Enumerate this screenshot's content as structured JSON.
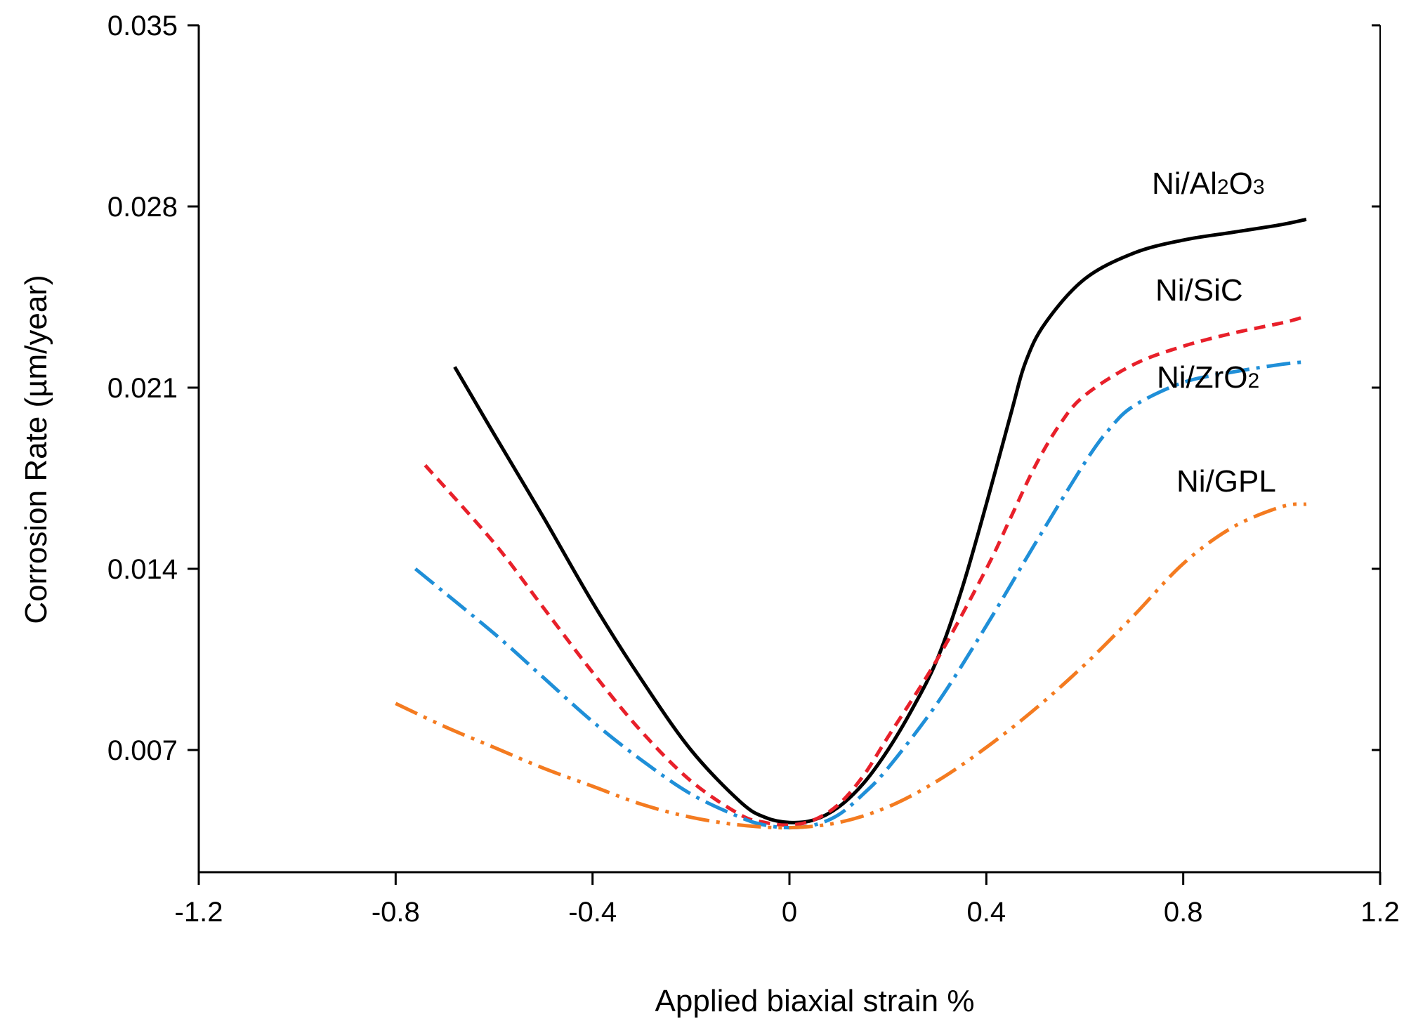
{
  "chart_data": {
    "type": "line",
    "title": "",
    "xlabel": "Applied biaxial strain %",
    "ylabel": "Corrosion Rate (µm/year)",
    "xlim": [
      -1.2,
      1.2
    ],
    "ylim": [
      0.0018,
      0.035
    ],
    "xticks": [
      -1.2,
      -0.8,
      -0.4,
      0,
      0.4,
      0.8,
      1.2
    ],
    "xtick_labels": [
      "-1.2",
      "-0.8",
      "-0.4",
      "0",
      "0.4",
      "0.8",
      "1.2"
    ],
    "yticks": [
      0.007,
      0.014,
      0.021,
      0.028,
      0.035
    ],
    "ytick_labels": [
      "0.007",
      "0.014",
      "0.021",
      "0.028",
      "0.035"
    ],
    "grid": false,
    "legend": "inline labels at right end of each curve",
    "series": [
      {
        "name": "Ni/Al2O3",
        "label_main": "Ni/Al",
        "label_sub1": "2",
        "label_mid": "O",
        "label_sub2": "3",
        "color": "#000000",
        "style": "solid",
        "x": [
          -0.68,
          -0.6,
          -0.5,
          -0.4,
          -0.3,
          -0.2,
          -0.1,
          -0.05,
          0,
          0.05,
          0.1,
          0.15,
          0.2,
          0.25,
          0.3,
          0.35,
          0.4,
          0.45,
          0.48,
          0.52,
          0.6,
          0.7,
          0.8,
          0.9,
          1.0,
          1.05
        ],
        "y": [
          0.0218,
          0.0192,
          0.016,
          0.0127,
          0.0097,
          0.007,
          0.005,
          0.0044,
          0.0042,
          0.0043,
          0.0048,
          0.0057,
          0.007,
          0.0086,
          0.0105,
          0.0132,
          0.0165,
          0.02,
          0.022,
          0.0235,
          0.0252,
          0.0262,
          0.0267,
          0.027,
          0.0273,
          0.0275
        ]
      },
      {
        "name": "Ni/SiC",
        "label_main": "Ni/SiC",
        "color": "#e8202a",
        "style": "dashed",
        "x": [
          -0.74,
          -0.6,
          -0.5,
          -0.4,
          -0.3,
          -0.2,
          -0.1,
          -0.05,
          0,
          0.05,
          0.1,
          0.15,
          0.2,
          0.3,
          0.4,
          0.45,
          0.5,
          0.55,
          0.6,
          0.7,
          0.8,
          0.9,
          1.0,
          1.04
        ],
        "y": [
          0.018,
          0.015,
          0.0125,
          0.01,
          0.0077,
          0.0058,
          0.0045,
          0.0042,
          0.0041,
          0.0043,
          0.0049,
          0.006,
          0.0075,
          0.0105,
          0.014,
          0.016,
          0.018,
          0.0196,
          0.0207,
          0.0219,
          0.0226,
          0.0231,
          0.0235,
          0.0237
        ]
      },
      {
        "name": "Ni/ZrO2",
        "label_main": "Ni/ZrO",
        "label_sub1": "2",
        "color": "#1f8fd8",
        "style": "dashdot",
        "x": [
          -0.76,
          -0.6,
          -0.5,
          -0.4,
          -0.3,
          -0.2,
          -0.1,
          -0.05,
          0,
          0.05,
          0.1,
          0.15,
          0.2,
          0.3,
          0.4,
          0.5,
          0.6,
          0.65,
          0.7,
          0.8,
          0.9,
          1.0,
          1.05
        ],
        "y": [
          0.014,
          0.0115,
          0.0098,
          0.0081,
          0.0066,
          0.0053,
          0.0044,
          0.0041,
          0.004,
          0.0041,
          0.0045,
          0.0053,
          0.0063,
          0.0088,
          0.0118,
          0.015,
          0.0181,
          0.0194,
          0.0203,
          0.0212,
          0.0216,
          0.0219,
          0.022
        ]
      },
      {
        "name": "Ni/GPL",
        "label_main": "Ni/GPL",
        "color": "#f47b20",
        "style": "dashdotdot",
        "x": [
          -0.8,
          -0.7,
          -0.6,
          -0.5,
          -0.4,
          -0.3,
          -0.2,
          -0.1,
          0,
          0.1,
          0.2,
          0.3,
          0.4,
          0.5,
          0.6,
          0.7,
          0.8,
          0.9,
          1.0,
          1.05
        ],
        "y": [
          0.0088,
          0.0079,
          0.0071,
          0.0063,
          0.0056,
          0.0049,
          0.0044,
          0.0041,
          0.004,
          0.0042,
          0.0048,
          0.0058,
          0.0071,
          0.0086,
          0.0103,
          0.0122,
          0.0142,
          0.0156,
          0.0164,
          0.0165
        ]
      }
    ]
  }
}
